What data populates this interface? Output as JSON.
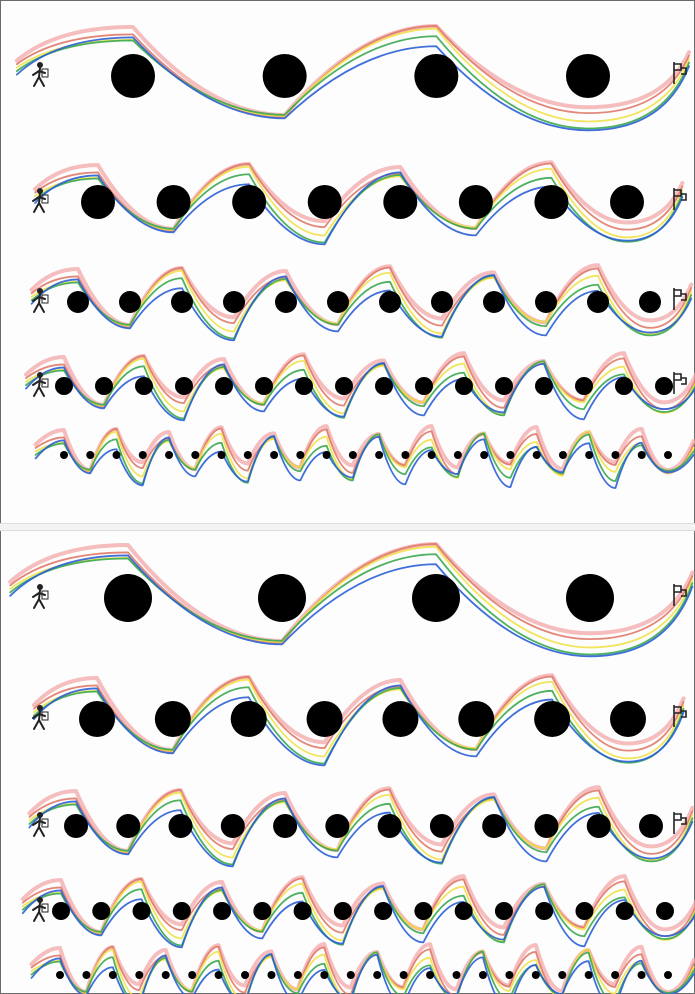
{
  "sheet": {
    "description_colors": {
      "dots": "#000000",
      "trace_blue": "#2b5fd6",
      "trace_green": "#3aa84f",
      "trace_yellow": "#f1e14a",
      "trace_red": "#e07a6a",
      "trace_pink": "#f2a7a7"
    },
    "panels": [
      {
        "rows": [
          {
            "dot_count": 4,
            "dot_size": "large",
            "start_icon": "walker-icon",
            "end_icon": "finish-flag-icon"
          },
          {
            "dot_count": 8,
            "dot_size": "medium",
            "start_icon": "walker-icon",
            "end_icon": "finish-flag-icon"
          },
          {
            "dot_count": 12,
            "dot_size": "small",
            "start_icon": "walker-icon",
            "end_icon": "finish-flag-icon"
          },
          {
            "dot_count": 16,
            "dot_size": "small",
            "start_icon": "walker-icon",
            "end_icon": "finish-flag-icon"
          },
          {
            "dot_count": 24,
            "dot_size": "tiny",
            "start_icon": "",
            "end_icon": ""
          }
        ]
      },
      {
        "rows": [
          {
            "dot_count": 4,
            "dot_size": "large",
            "start_icon": "walker-icon",
            "end_icon": "finish-flag-icon"
          },
          {
            "dot_count": 8,
            "dot_size": "medium",
            "start_icon": "walker-icon",
            "end_icon": "finish-flag-icon"
          },
          {
            "dot_count": 12,
            "dot_size": "small",
            "start_icon": "walker-icon",
            "end_icon": "finish-flag-icon"
          },
          {
            "dot_count": 16,
            "dot_size": "small",
            "start_icon": "walker-icon",
            "end_icon": ""
          },
          {
            "dot_count": 24,
            "dot_size": "tiny",
            "start_icon": "",
            "end_icon": ""
          }
        ]
      }
    ]
  }
}
